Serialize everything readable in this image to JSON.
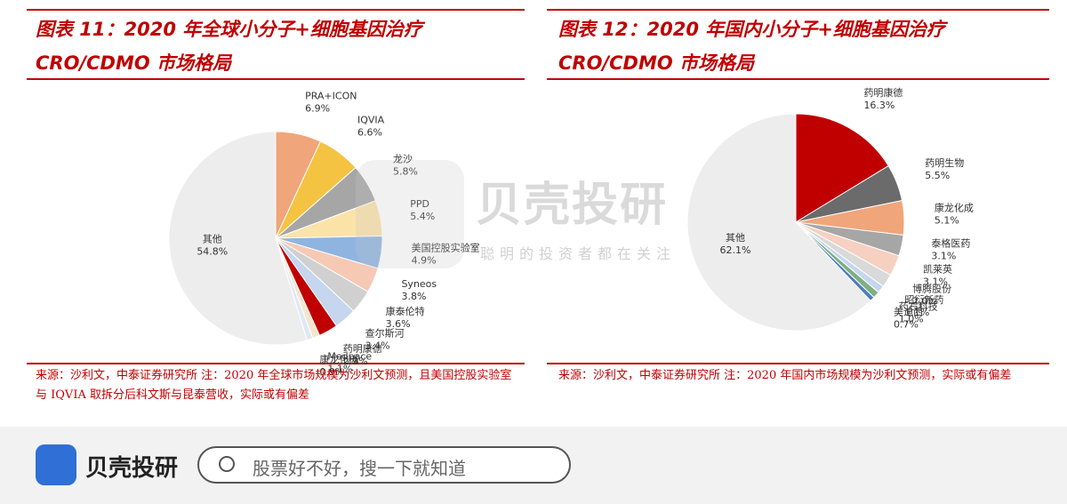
{
  "chart_data": [
    {
      "type": "pie",
      "title": "图表 11：2020 年全球小分子+细胞基因治疗 CRO/CDMO 市场格局",
      "categories": [
        "PRA+ICON",
        "IQVIA",
        "龙沙",
        "PPD",
        "美国控股实验室",
        "Syneos",
        "康泰伦特",
        "查尔斯河",
        "药明康德",
        "Medpace",
        "康龙化成",
        "其他"
      ],
      "values": [
        6.9,
        6.6,
        5.8,
        5.4,
        4.9,
        3.8,
        3.6,
        3.4,
        2.9,
        1.1,
        0.9,
        54.8
      ],
      "value_labels": [
        "6.9%",
        "6.6%",
        "5.8%",
        "5.4%",
        "4.9%",
        "3.8%",
        "3.6%",
        "3.4%",
        "2.9%",
        "1.1%",
        "0.9%",
        "54.8%"
      ],
      "colors": [
        "#f0a57a",
        "#f5c342",
        "#a6a6a6",
        "#fbe3a8",
        "#8fb4e0",
        "#f6c9b5",
        "#d0d0d0",
        "#c5d6ee",
        "#c00000",
        "#f6e6d0",
        "#dfe9f5",
        "#ededed"
      ],
      "source": "来源：沙利文，中泰证券研究所 注：2020 年全球市场规模为沙利文预测，且美国控股实验室与 IQVIA 取拆分后科文斯与昆泰营收，实际或有偏差"
    },
    {
      "type": "pie",
      "title": "图表 12：2020 年国内小分子+细胞基因治疗 CRO/CDMO 市场格局",
      "categories": [
        "药明康德",
        "药明生物",
        "康龙化成",
        "泰格医药",
        "凯莱英",
        "博腾股份",
        "昭衍新药",
        "药石科技",
        "美迪西",
        "其他"
      ],
      "values": [
        16.3,
        5.5,
        5.1,
        3.1,
        3.1,
        2.0,
        1.1,
        1.0,
        0.7,
        62.1
      ],
      "value_labels": [
        "16.3%",
        "5.5%",
        "5.1%",
        "3.1%",
        "3.1%",
        "2.0%",
        "1.1%",
        "1.0%",
        "0.7%",
        "62.1%"
      ],
      "colors": [
        "#c00000",
        "#6b6b6b",
        "#f0a57a",
        "#a6a6a6",
        "#f6d0c0",
        "#d9d9d9",
        "#c5d6ee",
        "#7fae7f",
        "#4a7fbf",
        "#ededed"
      ],
      "source": "来源：沙利文，中泰证券研究所 注：2020 年国内市场规模为沙利文预测，实际或有偏差"
    }
  ],
  "watermark": {
    "brand": "贝壳投研",
    "slogan": "聪明的投资者都在关注"
  },
  "footer": {
    "brand": "贝壳投研",
    "search_placeholder": "股票好不好，搜一下就知道"
  }
}
